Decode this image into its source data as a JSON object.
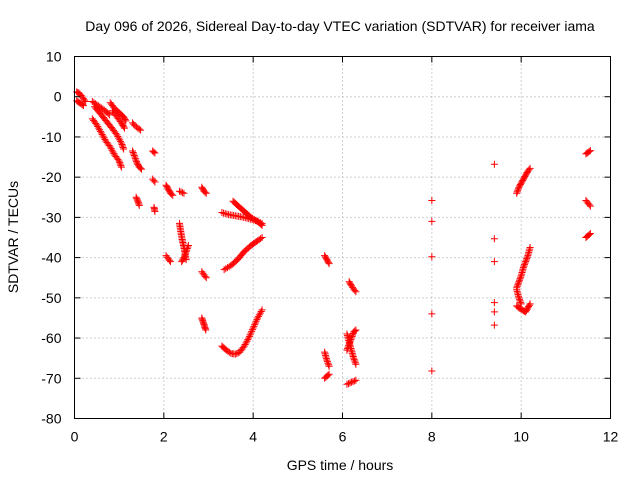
{
  "chart_data": {
    "type": "scatter",
    "title": "Day 096 of 2026, Sidereal Day-to-day VTEC variation (SDTVAR) for receiver iama",
    "xlabel": "GPS time / hours",
    "ylabel": "SDTVAR / TECUs",
    "xlim": [
      0,
      12
    ],
    "ylim": [
      -80,
      10
    ],
    "xticks": [
      0,
      2,
      4,
      6,
      8,
      10,
      12
    ],
    "yticks": [
      -80,
      -70,
      -60,
      -50,
      -40,
      -30,
      -20,
      -10,
      0,
      10
    ],
    "grid": true,
    "marker": "+",
    "color": "#ff0000",
    "series": [
      {
        "name": "SDTVAR",
        "segments": [
          [
            [
              0.05,
              1.2
            ],
            [
              0.1,
              0.9
            ],
            [
              0.15,
              0.3
            ],
            [
              0.2,
              -0.5
            ],
            [
              0.25,
              -1.2
            ]
          ],
          [
            [
              0.05,
              -1.0
            ],
            [
              0.1,
              -1.4
            ],
            [
              0.15,
              -1.8
            ],
            [
              0.2,
              -2.2
            ]
          ],
          [
            [
              0.4,
              -1.2
            ],
            [
              0.5,
              -2.0
            ],
            [
              0.6,
              -2.8
            ],
            [
              0.7,
              -3.6
            ],
            [
              0.78,
              -4.5
            ]
          ],
          [
            [
              0.45,
              -2.5
            ],
            [
              0.55,
              -3.8
            ],
            [
              0.65,
              -5.2
            ],
            [
              0.75,
              -6.6
            ],
            [
              0.85,
              -8.0
            ],
            [
              0.95,
              -9.5
            ],
            [
              1.05,
              -11.5
            ],
            [
              1.1,
              -13.0
            ]
          ],
          [
            [
              0.4,
              -5.5
            ],
            [
              0.5,
              -7.0
            ],
            [
              0.6,
              -9.0
            ],
            [
              0.7,
              -11.0
            ],
            [
              0.8,
              -12.5
            ],
            [
              0.9,
              -14.5
            ],
            [
              1.0,
              -16.0
            ],
            [
              1.05,
              -17.5
            ]
          ],
          [
            [
              0.8,
              -1.5
            ],
            [
              0.85,
              -2.2
            ],
            [
              0.9,
              -3.0
            ],
            [
              1.0,
              -4.0
            ],
            [
              1.1,
              -5.0
            ],
            [
              1.15,
              -6.0
            ]
          ],
          [
            [
              0.85,
              -3.5
            ],
            [
              0.95,
              -5.0
            ],
            [
              1.05,
              -6.5
            ],
            [
              1.12,
              -7.8
            ]
          ],
          [
            [
              1.3,
              -6.5
            ],
            [
              1.35,
              -7.2
            ],
            [
              1.42,
              -7.8
            ],
            [
              1.48,
              -8.3
            ]
          ],
          [
            [
              1.3,
              -13.5
            ],
            [
              1.35,
              -15.0
            ],
            [
              1.4,
              -16.5
            ],
            [
              1.45,
              -17.5
            ],
            [
              1.5,
              -18.0
            ]
          ],
          [
            [
              1.38,
              -25.0
            ],
            [
              1.42,
              -26.0
            ],
            [
              1.45,
              -27.0
            ]
          ],
          [
            [
              1.75,
              -13.5
            ],
            [
              1.8,
              -14.0
            ]
          ],
          [
            [
              1.75,
              -20.5
            ],
            [
              1.8,
              -21.2
            ]
          ],
          [
            [
              1.78,
              -27.5
            ],
            [
              1.8,
              -28.5
            ]
          ],
          [
            [
              2.05,
              -22.0
            ],
            [
              2.1,
              -23.0
            ],
            [
              2.15,
              -24.0
            ],
            [
              2.2,
              -24.5
            ]
          ],
          [
            [
              2.05,
              -39.5
            ],
            [
              2.1,
              -40.3
            ],
            [
              2.15,
              -41.0
            ]
          ],
          [
            [
              2.35,
              -23.5
            ],
            [
              2.45,
              -24.0
            ]
          ],
          [
            [
              2.35,
              -31.5
            ],
            [
              2.38,
              -33.5
            ],
            [
              2.41,
              -35.5
            ],
            [
              2.44,
              -37.0
            ],
            [
              2.47,
              -38.5
            ],
            [
              2.5,
              -40.5
            ]
          ],
          [
            [
              2.4,
              -41.0
            ],
            [
              2.45,
              -40.0
            ],
            [
              2.5,
              -38.5
            ],
            [
              2.55,
              -37.0
            ]
          ],
          [
            [
              2.85,
              -22.5
            ],
            [
              2.9,
              -23.5
            ],
            [
              2.95,
              -24.0
            ]
          ],
          [
            [
              2.85,
              -43.5
            ],
            [
              2.9,
              -44.3
            ],
            [
              2.95,
              -45.0
            ]
          ],
          [
            [
              2.85,
              -55.0
            ],
            [
              2.88,
              -56.0
            ],
            [
              2.91,
              -57.0
            ],
            [
              2.94,
              -58.0
            ]
          ],
          [
            [
              3.3,
              -28.8
            ],
            [
              3.45,
              -29.3
            ],
            [
              3.6,
              -29.6
            ],
            [
              3.75,
              -29.9
            ],
            [
              3.9,
              -30.3
            ],
            [
              4.05,
              -30.8
            ],
            [
              4.2,
              -31.5
            ]
          ],
          [
            [
              3.55,
              -26.0
            ],
            [
              3.65,
              -27.0
            ],
            [
              3.75,
              -28.0
            ],
            [
              3.85,
              -29.0
            ],
            [
              3.95,
              -30.0
            ],
            [
              4.1,
              -31.0
            ],
            [
              4.2,
              -32.0
            ]
          ],
          [
            [
              3.35,
              -43.0
            ],
            [
              3.5,
              -42.0
            ],
            [
              3.65,
              -40.5
            ],
            [
              3.8,
              -38.5
            ],
            [
              3.95,
              -37.0
            ],
            [
              4.1,
              -35.8
            ],
            [
              4.2,
              -35.0
            ]
          ],
          [
            [
              3.3,
              -62.0
            ],
            [
              3.4,
              -63.0
            ],
            [
              3.5,
              -63.8
            ],
            [
              3.6,
              -64.0
            ],
            [
              3.7,
              -63.5
            ],
            [
              3.8,
              -62.0
            ],
            [
              3.9,
              -60.0
            ],
            [
              4.0,
              -57.5
            ],
            [
              4.1,
              -55.0
            ],
            [
              4.2,
              -53.0
            ]
          ],
          [
            [
              5.6,
              -39.5
            ],
            [
              5.65,
              -40.5
            ],
            [
              5.7,
              -41.5
            ]
          ],
          [
            [
              5.6,
              -63.5
            ],
            [
              5.65,
              -65.5
            ],
            [
              5.7,
              -67.0
            ]
          ],
          [
            [
              5.6,
              -70.0
            ],
            [
              5.65,
              -69.5
            ],
            [
              5.7,
              -69.0
            ]
          ],
          [
            [
              6.15,
              -46.0
            ],
            [
              6.2,
              -47.0
            ],
            [
              6.25,
              -47.8
            ],
            [
              6.3,
              -48.5
            ]
          ],
          [
            [
              6.1,
              -59.0
            ],
            [
              6.15,
              -61.0
            ],
            [
              6.2,
              -63.0
            ],
            [
              6.25,
              -65.0
            ],
            [
              6.3,
              -66.5
            ]
          ],
          [
            [
              6.1,
              -63.0
            ],
            [
              6.15,
              -61.5
            ],
            [
              6.2,
              -60.0
            ],
            [
              6.25,
              -58.5
            ],
            [
              6.3,
              -58.0
            ]
          ],
          [
            [
              6.1,
              -71.5
            ],
            [
              6.2,
              -71.0
            ],
            [
              6.3,
              -70.5
            ]
          ],
          [
            [
              8.0,
              -25.8
            ]
          ],
          [
            [
              8.0,
              -31.0
            ]
          ],
          [
            [
              8.0,
              -39.8
            ]
          ],
          [
            [
              8.0,
              -54.0
            ]
          ],
          [
            [
              8.0,
              -68.2
            ]
          ],
          [
            [
              9.4,
              -16.8
            ]
          ],
          [
            [
              9.4,
              -35.3
            ]
          ],
          [
            [
              9.4,
              -41.0
            ]
          ],
          [
            [
              9.4,
              -51.2
            ]
          ],
          [
            [
              9.4,
              -53.5
            ]
          ],
          [
            [
              9.4,
              -56.8
            ]
          ],
          [
            [
              9.9,
              -24.0
            ],
            [
              9.95,
              -22.5
            ],
            [
              10.0,
              -21.5
            ],
            [
              10.05,
              -20.5
            ],
            [
              10.1,
              -19.5
            ],
            [
              10.15,
              -18.5
            ],
            [
              10.2,
              -17.8
            ]
          ],
          [
            [
              9.9,
              -47.5
            ],
            [
              9.95,
              -46.0
            ],
            [
              10.0,
              -44.5
            ],
            [
              10.05,
              -42.5
            ],
            [
              10.1,
              -41.0
            ],
            [
              10.15,
              -39.5
            ],
            [
              10.2,
              -37.5
            ]
          ],
          [
            [
              9.9,
              -52.0
            ],
            [
              9.95,
              -52.5
            ],
            [
              10.0,
              -52.8
            ],
            [
              10.05,
              -53.2
            ],
            [
              10.1,
              -53.5
            ],
            [
              10.15,
              -52.5
            ],
            [
              10.2,
              -51.5
            ]
          ],
          [
            [
              9.9,
              -48.0
            ],
            [
              9.95,
              -50.0
            ],
            [
              10.0,
              -51.5
            ]
          ],
          [
            [
              11.45,
              -14.2
            ],
            [
              11.5,
              -13.8
            ],
            [
              11.55,
              -13.4
            ]
          ],
          [
            [
              11.45,
              -25.8
            ],
            [
              11.5,
              -26.5
            ],
            [
              11.55,
              -27.2
            ]
          ],
          [
            [
              11.45,
              -35.0
            ],
            [
              11.5,
              -34.5
            ],
            [
              11.55,
              -34.0
            ]
          ]
        ]
      }
    ]
  }
}
